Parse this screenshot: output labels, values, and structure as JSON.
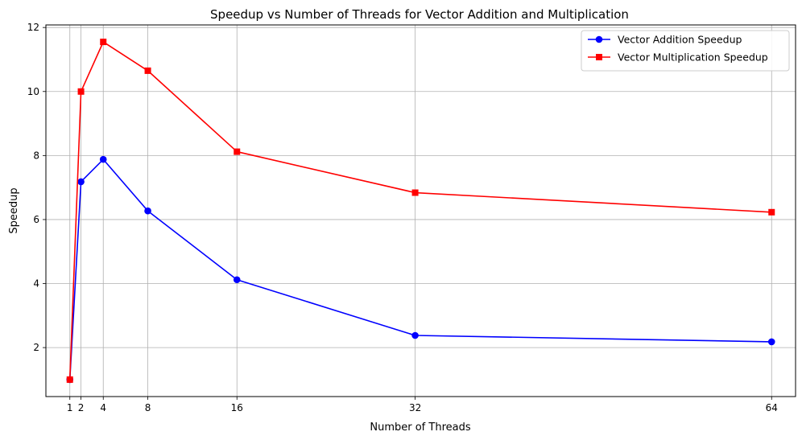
{
  "chart_data": {
    "type": "line",
    "title": "Speedup vs Number of Threads for Vector Addition and Multiplication",
    "xlabel": "Number of Threads",
    "ylabel": "Speedup",
    "x": [
      1,
      2,
      4,
      8,
      16,
      32,
      64
    ],
    "xticks": [
      1,
      2,
      4,
      8,
      16,
      32,
      64
    ],
    "yticks": [
      2,
      4,
      6,
      8,
      10,
      12
    ],
    "xlim": [
      -1.15,
      66.15
    ],
    "ylim": [
      0.47,
      12.08
    ],
    "grid": true,
    "legend_position": "top-right",
    "series": [
      {
        "name": "Vector Addition Speedup",
        "color": "#0000ff",
        "marker": "circle",
        "values": [
          1.0,
          7.18,
          7.88,
          6.27,
          4.12,
          2.38,
          2.18
        ]
      },
      {
        "name": "Vector Multiplication Speedup",
        "color": "#ff0000",
        "marker": "square",
        "values": [
          1.0,
          10.0,
          11.55,
          10.65,
          8.12,
          6.84,
          6.23
        ]
      }
    ]
  }
}
